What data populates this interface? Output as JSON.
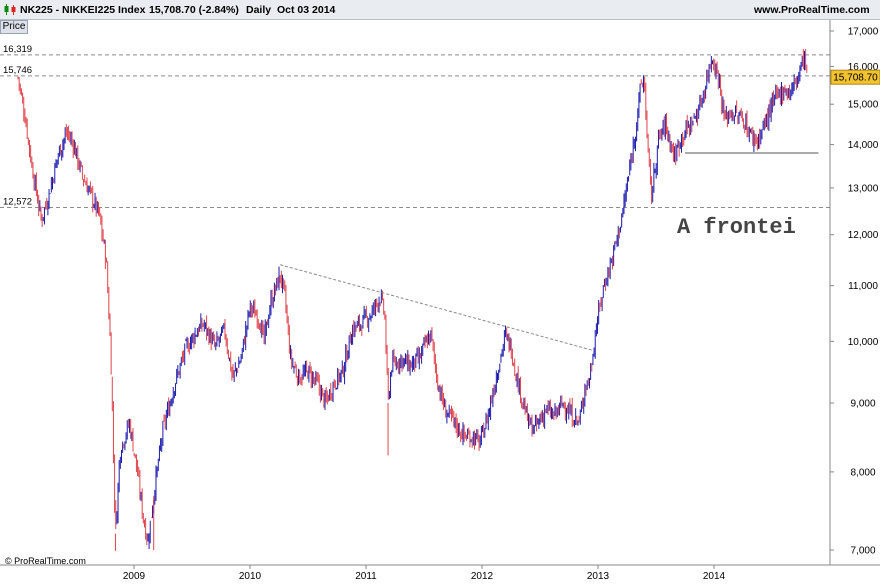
{
  "header": {
    "symbol": "NK225 - NIKKEI225 Index",
    "last": "15,708.70 (-2.84%)",
    "period": "Daily",
    "date": "Oct 03 2014",
    "site": "www.ProRealTime.com"
  },
  "price_tab": "Price",
  "footer_credit": "© ProRealTime.com",
  "colors": {
    "up": "#1a1ab0",
    "down": "#e2434b",
    "accent": "#f2c230"
  },
  "chart_data": {
    "type": "candlestick",
    "scale": "log",
    "ylim": [
      6900,
      17000
    ],
    "x_range": [
      2008.0,
      2014.9
    ],
    "yticks": [
      {
        "value": 7000,
        "label": "7,000"
      },
      {
        "value": 8000,
        "label": "8,000"
      },
      {
        "value": 9000,
        "label": "9,000"
      },
      {
        "value": 10000,
        "label": "10,000"
      },
      {
        "value": 11000,
        "label": "11,000"
      },
      {
        "value": 12000,
        "label": "12,000"
      },
      {
        "value": 13000,
        "label": "13,000"
      },
      {
        "value": 14000,
        "label": "14,000"
      },
      {
        "value": 15000,
        "label": "15,000"
      },
      {
        "value": 16000,
        "label": "16,000"
      },
      {
        "value": 17000,
        "label": "17,000"
      }
    ],
    "xticks": [
      {
        "value": 2009,
        "label": "2009"
      },
      {
        "value": 2010,
        "label": "2010"
      },
      {
        "value": 2011,
        "label": "2011"
      },
      {
        "value": 2012,
        "label": "2012"
      },
      {
        "value": 2013,
        "label": "2013"
      },
      {
        "value": 2014,
        "label": "2014"
      }
    ],
    "close_path": [
      [
        2008.0,
        15700
      ],
      [
        2008.06,
        14700
      ],
      [
        2008.12,
        13500
      ],
      [
        2008.2,
        12300
      ],
      [
        2008.26,
        12800
      ],
      [
        2008.35,
        13800
      ],
      [
        2008.42,
        14300
      ],
      [
        2008.48,
        14000
      ],
      [
        2008.55,
        13300
      ],
      [
        2008.62,
        12900
      ],
      [
        2008.7,
        12400
      ],
      [
        2008.76,
        11500
      ],
      [
        2008.8,
        9800
      ],
      [
        2008.84,
        7200
      ],
      [
        2008.88,
        8300
      ],
      [
        2008.92,
        8500
      ],
      [
        2008.96,
        8700
      ],
      [
        2009.02,
        8100
      ],
      [
        2009.08,
        7400
      ],
      [
        2009.12,
        7100
      ],
      [
        2009.18,
        7800
      ],
      [
        2009.25,
        8600
      ],
      [
        2009.35,
        9300
      ],
      [
        2009.45,
        9900
      ],
      [
        2009.55,
        10200
      ],
      [
        2009.6,
        10300
      ],
      [
        2009.7,
        9900
      ],
      [
        2009.78,
        10200
      ],
      [
        2009.85,
        9400
      ],
      [
        2009.92,
        9700
      ],
      [
        2010.0,
        10600
      ],
      [
        2010.08,
        10400
      ],
      [
        2010.12,
        10000
      ],
      [
        2010.18,
        10700
      ],
      [
        2010.26,
        11200
      ],
      [
        2010.3,
        10800
      ],
      [
        2010.35,
        9700
      ],
      [
        2010.42,
        9400
      ],
      [
        2010.5,
        9500
      ],
      [
        2010.58,
        9300
      ],
      [
        2010.65,
        9000
      ],
      [
        2010.72,
        9300
      ],
      [
        2010.8,
        9500
      ],
      [
        2010.88,
        10200
      ],
      [
        2010.95,
        10300
      ],
      [
        2011.05,
        10500
      ],
      [
        2011.12,
        10800
      ],
      [
        2011.16,
        10500
      ],
      [
        2011.19,
        9000
      ],
      [
        2011.22,
        9600
      ],
      [
        2011.3,
        9700
      ],
      [
        2011.38,
        9600
      ],
      [
        2011.46,
        9700
      ],
      [
        2011.52,
        10000
      ],
      [
        2011.56,
        10100
      ],
      [
        2011.62,
        9300
      ],
      [
        2011.68,
        8900
      ],
      [
        2011.76,
        8700
      ],
      [
        2011.85,
        8500
      ],
      [
        2011.92,
        8500
      ],
      [
        2011.98,
        8400
      ],
      [
        2012.05,
        8800
      ],
      [
        2012.12,
        9400
      ],
      [
        2012.2,
        10100
      ],
      [
        2012.25,
        9900
      ],
      [
        2012.3,
        9400
      ],
      [
        2012.4,
        8700
      ],
      [
        2012.45,
        8600
      ],
      [
        2012.55,
        8900
      ],
      [
        2012.62,
        8800
      ],
      [
        2012.7,
        9000
      ],
      [
        2012.78,
        8800
      ],
      [
        2012.84,
        8700
      ],
      [
        2012.88,
        9200
      ],
      [
        2012.93,
        9400
      ],
      [
        2012.98,
        10200
      ],
      [
        2013.05,
        11000
      ],
      [
        2013.12,
        11500
      ],
      [
        2013.2,
        12300
      ],
      [
        2013.26,
        13200
      ],
      [
        2013.32,
        14300
      ],
      [
        2013.37,
        15500
      ],
      [
        2013.4,
        15600
      ],
      [
        2013.43,
        13800
      ],
      [
        2013.46,
        12800
      ],
      [
        2013.52,
        14100
      ],
      [
        2013.58,
        14500
      ],
      [
        2013.66,
        13700
      ],
      [
        2013.72,
        14200
      ],
      [
        2013.8,
        14500
      ],
      [
        2013.86,
        14800
      ],
      [
        2013.92,
        15400
      ],
      [
        2013.98,
        16300
      ],
      [
        2014.04,
        15700
      ],
      [
        2014.09,
        14600
      ],
      [
        2014.14,
        14800
      ],
      [
        2014.2,
        14700
      ],
      [
        2014.26,
        14600
      ],
      [
        2014.32,
        14200
      ],
      [
        2014.38,
        14100
      ],
      [
        2014.45,
        14600
      ],
      [
        2014.52,
        15100
      ],
      [
        2014.6,
        15400
      ],
      [
        2014.66,
        15300
      ],
      [
        2014.72,
        15700
      ],
      [
        2014.76,
        16100
      ],
      [
        2014.78,
        16300
      ],
      [
        2014.8,
        15700
      ]
    ],
    "spikes": [
      {
        "x": 2008.84,
        "low": 6990
      },
      {
        "x": 2009.17,
        "low": 7000
      },
      {
        "x": 2011.19,
        "low": 8230
      }
    ],
    "hlines": [
      {
        "value": 16319,
        "label": "16,319"
      },
      {
        "value": 15746,
        "label": "15,746"
      },
      {
        "value": 12572,
        "label": "12,572"
      }
    ],
    "trendline": [
      [
        2010.26,
        11400
      ],
      [
        2012.95,
        9850
      ]
    ],
    "support": {
      "x0": 2013.75,
      "x1": 2014.9,
      "value": 13800
    },
    "annotation": "A frontei",
    "last_value": "15,708.70"
  }
}
